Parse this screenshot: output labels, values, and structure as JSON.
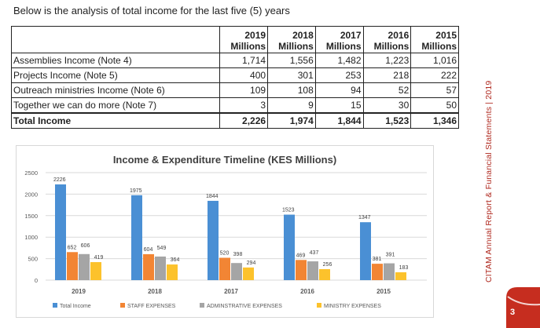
{
  "intro": "Below is the analysis of total income for the last five (5) years",
  "table": {
    "headers": [
      {
        "year": "2019",
        "unit": "Millions"
      },
      {
        "year": "2018",
        "unit": "Millions"
      },
      {
        "year": "2017",
        "unit": "Millions"
      },
      {
        "year": "2016",
        "unit": "Millions"
      },
      {
        "year": "2015",
        "unit": "Millions"
      }
    ],
    "rows": [
      {
        "label": "Assemblies Income (Note 4)",
        "values": [
          "1,714",
          "1,556",
          "1,482",
          "1,223",
          "1,016"
        ]
      },
      {
        "label": "Projects Income (Note 5)",
        "values": [
          "400",
          "301",
          "253",
          "218",
          "222"
        ]
      },
      {
        "label": "Outreach ministries Income (Note 6)",
        "values": [
          "109",
          "108",
          "94",
          "52",
          "57"
        ]
      },
      {
        "label": "Together we can do more (Note 7)",
        "values": [
          "3",
          "9",
          "15",
          "30",
          "50"
        ]
      }
    ],
    "total": {
      "label": "Total Income",
      "values": [
        "2,226",
        "1,974",
        "1,844",
        "1,523",
        "1,346"
      ]
    }
  },
  "chart_data": {
    "type": "bar",
    "title": "Income & Expenditure Timeline (KES Millions)",
    "categories": [
      "2019",
      "2018",
      "2017",
      "2016",
      "2015"
    ],
    "series": [
      {
        "name": "Total Income",
        "color": "#4a8fd4",
        "values": [
          2226,
          1975,
          1844,
          1523,
          1347
        ]
      },
      {
        "name": "STAFF EXPENSES",
        "color": "#f28534",
        "values": [
          652,
          604,
          520,
          469,
          381
        ]
      },
      {
        "name": "ADMINSTRATIVE EXPENSES",
        "color": "#a5a5a5",
        "values": [
          606,
          549,
          398,
          437,
          391
        ]
      },
      {
        "name": "MINISTRY EXPENSES",
        "color": "#fcc22c",
        "values": [
          419,
          364,
          294,
          256,
          183
        ]
      }
    ],
    "y_ticks": [
      "0",
      "500",
      "1000",
      "1500",
      "2000",
      "2500"
    ],
    "ylim": [
      0,
      2500
    ],
    "grid": true,
    "legend": "bottom"
  },
  "sidebar": {
    "running_title": "CITAM Annual Report & Funancial Statements  |  2019",
    "page_number": "3",
    "accent_color": "#c62d1f"
  }
}
